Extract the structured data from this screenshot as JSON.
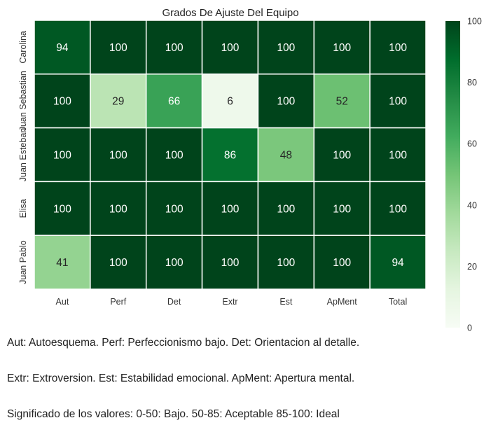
{
  "chart_data": {
    "type": "heatmap",
    "title": "Grados De Ajuste Del Equipo",
    "columns": [
      "Aut",
      "Perf",
      "Det",
      "Extr",
      "Est",
      "ApMent",
      "Total"
    ],
    "rows": [
      "Carolina",
      "Juan Sebastian",
      "Juan Esteban",
      "Elisa",
      "Juan Pablo"
    ],
    "values": [
      [
        94,
        100,
        100,
        100,
        100,
        100,
        100
      ],
      [
        100,
        29,
        66,
        6,
        100,
        52,
        100
      ],
      [
        100,
        100,
        100,
        86,
        48,
        100,
        100
      ],
      [
        100,
        100,
        100,
        100,
        100,
        100,
        100
      ],
      [
        41,
        100,
        100,
        100,
        100,
        100,
        94
      ]
    ],
    "colorbar": {
      "min": 0,
      "max": 100,
      "ticks": [
        "0",
        "20",
        "40",
        "60",
        "80",
        "100"
      ]
    },
    "colormap": "Greens",
    "colors": {
      "low": "#f7fcf5",
      "high": "#00441b"
    }
  },
  "caption": {
    "line1": "Aut: Autoesquema. Perf: Perfeccionismo bajo. Det: Orientacion al detalle.",
    "line2": "Extr: Extroversion. Est: Estabilidad emocional. ApMent: Apertura mental.",
    "line3": "Significado de los valores: 0-50: Bajo. 50-85: Aceptable 85-100: Ideal"
  }
}
